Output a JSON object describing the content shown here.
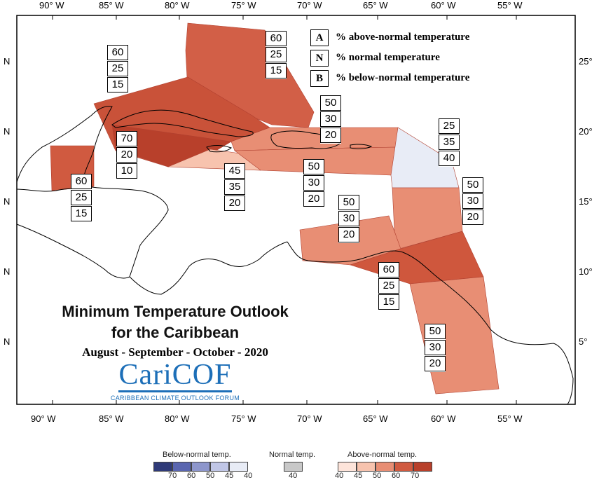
{
  "map": {
    "lon_labels": [
      "90° W",
      "85° W",
      "80° W",
      "75° W",
      "70° W",
      "65° W",
      "60° W",
      "55° W"
    ],
    "lat_labels_left": [
      "N",
      "N",
      "N",
      "N",
      "N"
    ],
    "lat_labels_right": [
      "25°",
      "20°",
      "15°",
      "10°",
      "5°"
    ]
  },
  "key": {
    "items": [
      {
        "letter": "A",
        "text": "% above-normal temperature"
      },
      {
        "letter": "N",
        "text": "% normal temperature"
      },
      {
        "letter": "B",
        "text": "% below-normal temperature"
      }
    ]
  },
  "regions": [
    {
      "name": "bahamas",
      "values": [
        "60",
        "25",
        "15"
      ],
      "fill": "#d25f47"
    },
    {
      "name": "cuba",
      "values": [
        "60",
        "25",
        "15"
      ],
      "fill": "#c95239"
    },
    {
      "name": "cayman-jamaica-west",
      "values": [
        "70",
        "20",
        "10"
      ],
      "fill": "#b8402b"
    },
    {
      "name": "belize",
      "values": [
        "60",
        "25",
        "15"
      ],
      "fill": "#d05a40"
    },
    {
      "name": "jamaica-south",
      "values": [
        "45",
        "35",
        "20"
      ],
      "fill": "#f7c3ae"
    },
    {
      "name": "hispaniola-north",
      "values": [
        "50",
        "30",
        "20"
      ],
      "fill": "#e88e74"
    },
    {
      "name": "hispaniola-south",
      "values": [
        "50",
        "30",
        "20"
      ],
      "fill": "#e88e74"
    },
    {
      "name": "leeward-islands",
      "values": [
        "25",
        "35",
        "40"
      ],
      "fill": "#e8ecf6"
    },
    {
      "name": "windward-islands",
      "values": [
        "50",
        "30",
        "20"
      ],
      "fill": "#e88e74"
    },
    {
      "name": "abc-islands",
      "values": [
        "50",
        "30",
        "20"
      ],
      "fill": "#e88e74"
    },
    {
      "name": "trinidad",
      "values": [
        "60",
        "25",
        "15"
      ],
      "fill": "#cf573d"
    },
    {
      "name": "guianas",
      "values": [
        "50",
        "30",
        "20"
      ],
      "fill": "#e88e74"
    }
  ],
  "title": {
    "line1": "Minimum Temperature Outlook",
    "line2": "for the Caribbean",
    "period": "August - September - October - 2020"
  },
  "logo": {
    "name": "CariCOF",
    "tagline": "CARIBBEAN CLIMATE OUTLOOK FORUM"
  },
  "colorbar": {
    "below_label": "Below-normal temp.",
    "normal_label": "Normal temp.",
    "above_label": "Above-normal temp.",
    "below_ticks": [
      "70",
      "60",
      "50",
      "45",
      "40"
    ],
    "normal_ticks": [
      "40"
    ],
    "above_ticks": [
      "40",
      "45",
      "50",
      "60",
      "70"
    ],
    "below_colors": [
      "#2f3a78",
      "#5a66b0",
      "#8d96cc",
      "#c0c6e6",
      "#e8ecf6"
    ],
    "normal_color": "#c8c8c8",
    "above_colors": [
      "#fde4da",
      "#f7c3ae",
      "#e88e74",
      "#d05a40",
      "#b8402b"
    ]
  }
}
